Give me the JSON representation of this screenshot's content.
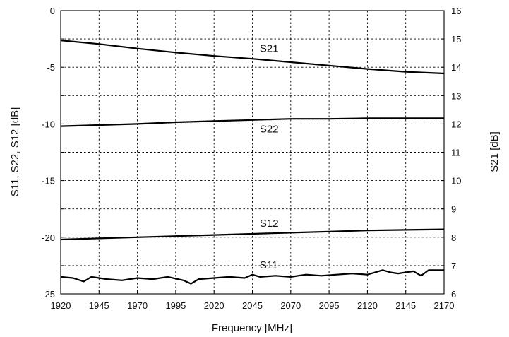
{
  "chart_data": {
    "type": "line",
    "xlabel": "Frequency [MHz]",
    "ylabel": "S11, S22, S12 [dB]",
    "y2label": "S21 [dB]",
    "xlim": [
      1920,
      2170
    ],
    "ylim": [
      -25,
      0
    ],
    "y2lim": [
      6,
      16
    ],
    "grid": true,
    "x_ticks": [
      "1920",
      "1945",
      "1970",
      "1995",
      "2020",
      "2045",
      "2070",
      "2095",
      "2120",
      "2145",
      "2170"
    ],
    "y_ticks": [
      "0",
      "-5",
      "-10",
      "-15",
      "-20",
      "-25"
    ],
    "y2_ticks": [
      "16",
      "15",
      "14",
      "13",
      "12",
      "11",
      "10",
      "9",
      "8",
      "7",
      "6"
    ],
    "series": [
      {
        "name": "S21",
        "axis": "right",
        "x": [
          1920,
          1945,
          1970,
          1995,
          2020,
          2045,
          2070,
          2095,
          2120,
          2145,
          2170
        ],
        "values": [
          14.95,
          14.82,
          14.66,
          14.52,
          14.4,
          14.3,
          14.18,
          14.06,
          13.94,
          13.84,
          13.78
        ]
      },
      {
        "name": "S22",
        "axis": "left",
        "x": [
          1920,
          1945,
          1970,
          1995,
          2020,
          2045,
          2070,
          2095,
          2120,
          2145,
          2170
        ],
        "values": [
          -10.2,
          -10.1,
          -10.0,
          -9.85,
          -9.75,
          -9.65,
          -9.55,
          -9.55,
          -9.5,
          -9.5,
          -9.5
        ]
      },
      {
        "name": "S12",
        "axis": "left",
        "x": [
          1920,
          1945,
          1970,
          1995,
          2020,
          2045,
          2070,
          2095,
          2120,
          2145,
          2170
        ],
        "values": [
          -20.2,
          -20.1,
          -20.0,
          -19.9,
          -19.8,
          -19.7,
          -19.6,
          -19.5,
          -19.4,
          -19.35,
          -19.3
        ]
      },
      {
        "name": "S11",
        "axis": "left",
        "x": [
          1920,
          1928,
          1935,
          1940,
          1950,
          1960,
          1970,
          1980,
          1990,
          2000,
          2005,
          2010,
          2020,
          2030,
          2040,
          2045,
          2050,
          2060,
          2070,
          2080,
          2090,
          2100,
          2110,
          2120,
          2130,
          2135,
          2140,
          2150,
          2155,
          2160,
          2170
        ],
        "values": [
          -23.5,
          -23.6,
          -23.9,
          -23.5,
          -23.7,
          -23.8,
          -23.6,
          -23.7,
          -23.5,
          -23.8,
          -24.1,
          -23.7,
          -23.6,
          -23.5,
          -23.6,
          -23.3,
          -23.5,
          -23.4,
          -23.5,
          -23.3,
          -23.4,
          -23.3,
          -23.2,
          -23.3,
          -22.9,
          -23.1,
          -23.2,
          -23.0,
          -23.4,
          -22.9,
          -22.9
        ]
      }
    ]
  }
}
